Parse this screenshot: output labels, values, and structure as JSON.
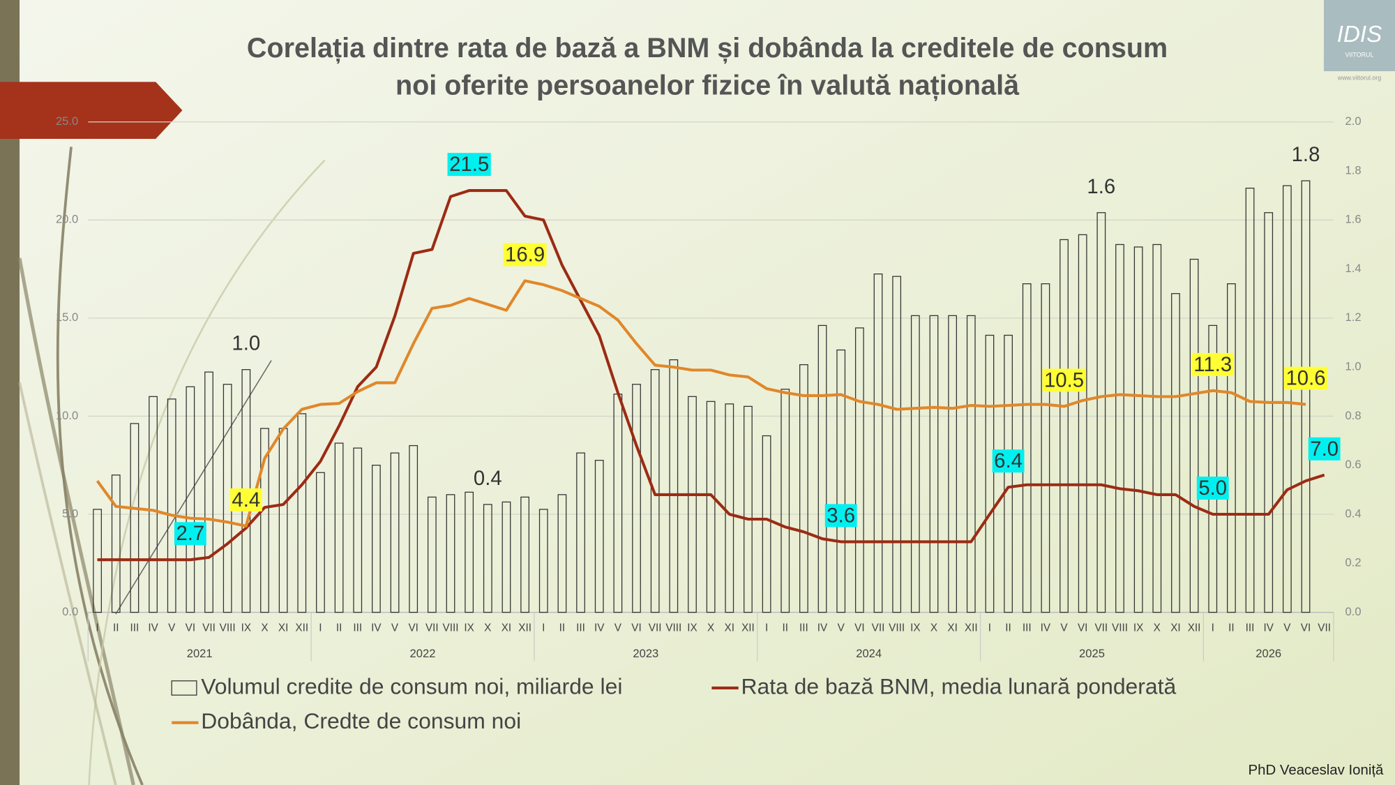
{
  "chart_data": {
    "type": "combo",
    "title": [
      "Corelația dintre rata de bază a BNM și dobânda la creditele de consum",
      "noi oferite persoanelor fizice în valută națională"
    ],
    "credit": "PhD Veaceslav Ioniță",
    "logo": {
      "name": "IDIS",
      "sub": "VIITORUL",
      "url": "www.viitorul.org"
    },
    "categories": [
      "I",
      "II",
      "III",
      "IV",
      "V",
      "VI",
      "VII",
      "VIII",
      "IX",
      "X",
      "XI",
      "XII",
      "I",
      "II",
      "III",
      "IV",
      "V",
      "VI",
      "VII",
      "VIII",
      "IX",
      "X",
      "XI",
      "XII",
      "I",
      "II",
      "III",
      "IV",
      "V",
      "VI",
      "VII",
      "VIII",
      "IX",
      "X",
      "XI",
      "XII",
      "I",
      "II",
      "III",
      "IV",
      "V",
      "VI",
      "VII",
      "VIII",
      "IX",
      "X",
      "XI",
      "XII",
      "I",
      "II",
      "III",
      "IV",
      "V",
      "VI",
      "VII",
      "VIII",
      "IX",
      "X",
      "XI",
      "XII",
      "I",
      "II",
      "III",
      "IV",
      "V",
      "VI",
      "VII"
    ],
    "x_groups": [
      "2021",
      "2022",
      "2023",
      "2024",
      "2025",
      "2026"
    ],
    "ylim": [
      0,
      25
    ],
    "yticks": [
      {
        "value": 0,
        "label": "0.0"
      },
      {
        "value": 5,
        "label": "5.0"
      },
      {
        "value": 10,
        "label": "10.0"
      },
      {
        "value": 15,
        "label": "15.0"
      },
      {
        "value": 20,
        "label": "20.0"
      },
      {
        "value": 25,
        "label": "25.0"
      }
    ],
    "y2lim": [
      0,
      2
    ],
    "y2ticks": [
      {
        "value": 0,
        "label": "0.0"
      },
      {
        "value": 0.2,
        "label": "0.2"
      },
      {
        "value": 0.4,
        "label": "0.4"
      },
      {
        "value": 0.6,
        "label": "0.6"
      },
      {
        "value": 0.8,
        "label": "0.8"
      },
      {
        "value": 1,
        "label": "1.0"
      },
      {
        "value": 1.2,
        "label": "1.2"
      },
      {
        "value": 1.4,
        "label": "1.4"
      },
      {
        "value": 1.6,
        "label": "1.6"
      },
      {
        "value": 1.8,
        "label": "1.8"
      },
      {
        "value": 2,
        "label": "2.0"
      }
    ],
    "grid": true,
    "series": [
      {
        "name": "Volumul credite de consum noi, miliarde lei",
        "type": "bar",
        "axis": "y2",
        "color": "#333333",
        "values": [
          0.42,
          0.56,
          0.77,
          0.88,
          0.87,
          0.92,
          0.98,
          0.93,
          0.99,
          0.75,
          0.75,
          0.81,
          0.57,
          0.69,
          0.67,
          0.6,
          0.65,
          0.68,
          0.47,
          0.48,
          0.49,
          0.44,
          0.45,
          0.47,
          0.42,
          0.48,
          0.65,
          0.62,
          0.89,
          0.93,
          0.99,
          1.03,
          0.88,
          0.86,
          0.85,
          0.84,
          0.72,
          0.91,
          1.01,
          1.17,
          1.07,
          1.16,
          1.38,
          1.37,
          1.21,
          1.21,
          1.21,
          1.21,
          1.13,
          1.13,
          1.34,
          1.34,
          1.52,
          1.54,
          1.63,
          1.5,
          1.49,
          1.5,
          1.3,
          1.44,
          1.17,
          1.34,
          1.73,
          1.63,
          1.74,
          1.76,
          null
        ],
        "value_labels": [
          null,
          null,
          null,
          null,
          null,
          null,
          null,
          null,
          "1.0",
          null,
          null,
          null,
          null,
          null,
          null,
          null,
          null,
          null,
          null,
          null,
          null,
          "0.4",
          null,
          null,
          null,
          null,
          null,
          null,
          null,
          null,
          null,
          null,
          null,
          null,
          null,
          null,
          null,
          null,
          null,
          null,
          null,
          null,
          null,
          null,
          null,
          null,
          null,
          null,
          null,
          null,
          null,
          null,
          null,
          null,
          "1.6",
          null,
          null,
          null,
          null,
          null,
          null,
          null,
          null,
          null,
          null,
          "1.8",
          null
        ]
      },
      {
        "name": "Rata de bază BNM, media lunară ponderată",
        "type": "line",
        "color": "#9c2b14",
        "label_background": "#00f0f0",
        "values": [
          2.68,
          2.68,
          2.68,
          2.68,
          2.68,
          2.68,
          2.8,
          3.5,
          4.3,
          5.35,
          5.5,
          6.5,
          7.7,
          9.5,
          11.5,
          12.5,
          15.1,
          18.3,
          18.5,
          21.2,
          21.5,
          21.5,
          21.5,
          20.2,
          20.0,
          17.7,
          15.9,
          14.1,
          11.2,
          8.5,
          6.0,
          6.0,
          6.0,
          6.0,
          5.0,
          4.75,
          4.75,
          4.35,
          4.1,
          3.75,
          3.6,
          3.6,
          3.6,
          3.6,
          3.6,
          3.6,
          3.6,
          3.6,
          5.0,
          6.38,
          6.5,
          6.5,
          6.5,
          6.5,
          6.5,
          6.3,
          6.2,
          6.0,
          6.0,
          5.4,
          5.0,
          5.0,
          5.0,
          5.0,
          6.25,
          6.7,
          7.0
        ],
        "value_labels": [
          null,
          null,
          null,
          null,
          null,
          "2.7",
          null,
          null,
          null,
          null,
          null,
          null,
          null,
          null,
          null,
          null,
          null,
          null,
          null,
          null,
          "21.5",
          null,
          null,
          null,
          null,
          null,
          null,
          null,
          null,
          null,
          null,
          null,
          null,
          null,
          null,
          null,
          null,
          null,
          null,
          null,
          "3.6",
          null,
          null,
          null,
          null,
          null,
          null,
          null,
          null,
          "6.4",
          null,
          null,
          null,
          null,
          null,
          null,
          null,
          null,
          null,
          null,
          "5.0",
          null,
          null,
          null,
          null,
          null,
          "7.0"
        ]
      },
      {
        "name": "Dobânda, Credte de consum noi",
        "type": "line",
        "color": "#e0872a",
        "label_background": "#ffff33",
        "values": [
          6.7,
          5.4,
          5.3,
          5.2,
          4.95,
          4.8,
          4.75,
          4.6,
          4.4,
          7.85,
          9.35,
          10.35,
          10.6,
          10.65,
          11.25,
          11.7,
          11.7,
          13.7,
          15.5,
          15.65,
          16.0,
          15.7,
          15.4,
          16.9,
          16.7,
          16.4,
          16.0,
          15.6,
          14.9,
          13.7,
          12.6,
          12.5,
          12.35,
          12.35,
          12.1,
          12.0,
          11.4,
          11.2,
          11.05,
          11.05,
          11.1,
          10.75,
          10.6,
          10.35,
          10.4,
          10.45,
          10.4,
          10.55,
          10.5,
          10.55,
          10.6,
          10.6,
          10.5,
          10.8,
          11.0,
          11.1,
          11.05,
          11.0,
          11.0,
          11.15,
          11.3,
          11.2,
          10.75,
          10.7,
          10.7,
          10.6,
          null
        ],
        "value_labels": [
          null,
          null,
          null,
          null,
          null,
          null,
          null,
          null,
          "4.4",
          null,
          null,
          null,
          null,
          null,
          null,
          null,
          null,
          null,
          null,
          null,
          null,
          null,
          null,
          "16.9",
          null,
          null,
          null,
          null,
          null,
          null,
          null,
          null,
          null,
          null,
          null,
          null,
          null,
          null,
          null,
          null,
          null,
          null,
          null,
          null,
          null,
          null,
          null,
          null,
          null,
          null,
          null,
          null,
          "10.5",
          null,
          null,
          null,
          null,
          null,
          null,
          null,
          "11.3",
          null,
          null,
          null,
          null,
          "10.6",
          null
        ]
      }
    ]
  }
}
